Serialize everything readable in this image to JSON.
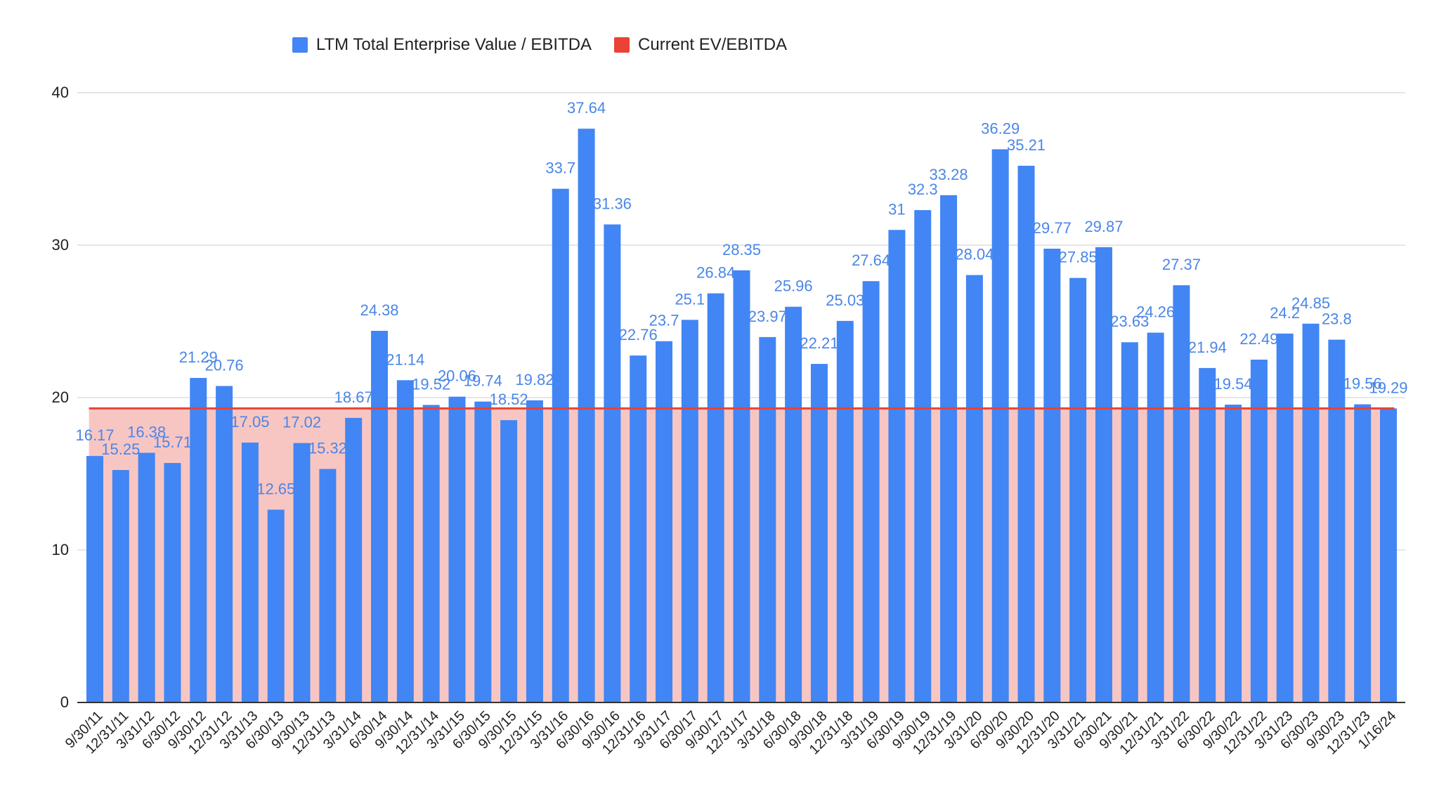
{
  "chart_data": {
    "type": "bar",
    "title": "",
    "xlabel": "",
    "ylabel": "",
    "ylim": [
      0,
      40
    ],
    "yticks": [
      0,
      10,
      20,
      30,
      40
    ],
    "grid": true,
    "legend_position": "top-center",
    "categories": [
      "9/30/11",
      "12/31/11",
      "3/31/12",
      "6/30/12",
      "9/30/12",
      "12/31/12",
      "3/31/13",
      "6/30/13",
      "9/30/13",
      "12/31/13",
      "3/31/14",
      "6/30/14",
      "9/30/14",
      "12/31/14",
      "3/31/15",
      "6/30/15",
      "9/30/15",
      "12/31/15",
      "3/31/16",
      "6/30/16",
      "9/30/16",
      "12/31/16",
      "3/31/17",
      "6/30/17",
      "9/30/17",
      "12/31/17",
      "3/31/18",
      "6/30/18",
      "9/30/18",
      "12/31/18",
      "3/31/19",
      "6/30/19",
      "9/30/19",
      "12/31/19",
      "3/31/20",
      "6/30/20",
      "9/30/20",
      "12/31/20",
      "3/31/21",
      "6/30/21",
      "9/30/21",
      "12/31/21",
      "3/31/22",
      "6/30/22",
      "9/30/22",
      "12/31/22",
      "3/31/23",
      "6/30/23",
      "9/30/23",
      "12/31/23",
      "1/16/24"
    ],
    "series": [
      {
        "name": "LTM Total Enterprise Value / EBITDA",
        "type": "bar",
        "color": "#4285f4",
        "values": [
          16.17,
          15.25,
          16.38,
          15.71,
          21.29,
          20.76,
          17.05,
          12.65,
          17.02,
          15.32,
          18.67,
          24.38,
          21.14,
          19.52,
          20.06,
          19.74,
          18.52,
          19.82,
          33.7,
          37.64,
          31.36,
          22.76,
          23.7,
          25.1,
          26.84,
          28.35,
          23.97,
          25.96,
          22.21,
          25.03,
          27.64,
          31,
          32.3,
          33.28,
          28.04,
          36.29,
          35.21,
          29.77,
          27.85,
          29.87,
          23.63,
          24.26,
          27.37,
          21.94,
          19.54,
          22.49,
          24.2,
          24.85,
          23.8,
          19.56,
          19.29
        ]
      },
      {
        "name": "Current EV/EBITDA",
        "type": "area-line",
        "color": "#ea4335",
        "fill_color": "#f8c6c2",
        "value": 19.29
      }
    ]
  }
}
